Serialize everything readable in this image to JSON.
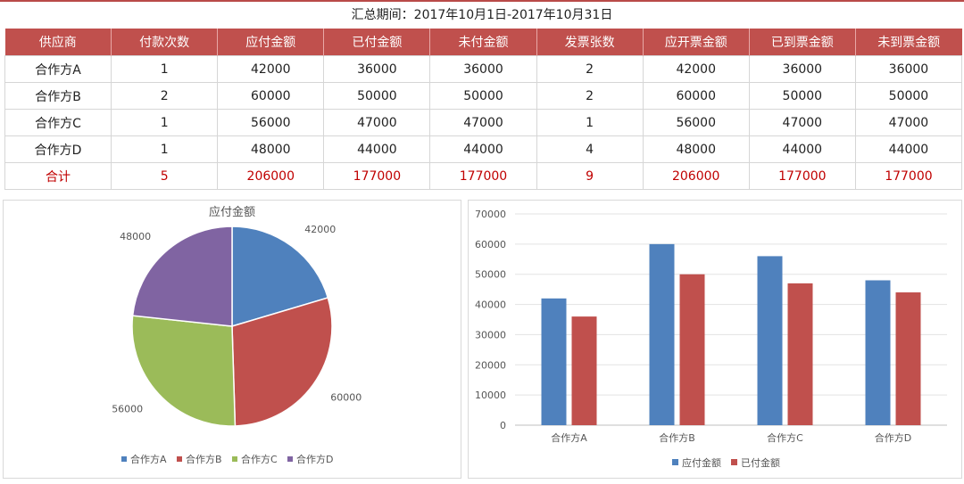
{
  "period_label": "汇总期间：2017年10月1日-2017年10月31日",
  "table": {
    "headers": [
      "供应商",
      "付款次数",
      "应付金额",
      "已付金额",
      "未付金额",
      "发票张数",
      "应开票金额",
      "已到票金额",
      "未到票金额"
    ],
    "rows": [
      [
        "合作方A",
        "1",
        "42000",
        "36000",
        "36000",
        "2",
        "42000",
        "36000",
        "36000"
      ],
      [
        "合作方B",
        "2",
        "60000",
        "50000",
        "50000",
        "2",
        "60000",
        "50000",
        "50000"
      ],
      [
        "合作方C",
        "1",
        "56000",
        "47000",
        "47000",
        "1",
        "56000",
        "47000",
        "47000"
      ],
      [
        "合作方D",
        "1",
        "48000",
        "44000",
        "44000",
        "4",
        "48000",
        "44000",
        "44000"
      ]
    ],
    "total": [
      "合计",
      "5",
      "206000",
      "177000",
      "177000",
      "9",
      "206000",
      "177000",
      "177000"
    ]
  },
  "chart_data": [
    {
      "type": "pie",
      "title": "应付金额",
      "categories": [
        "合作方A",
        "合作方B",
        "合作方C",
        "合作方D"
      ],
      "values": [
        42000,
        60000,
        56000,
        48000
      ],
      "data_labels": [
        "42000",
        "60000",
        "56000",
        "48000"
      ],
      "colors": [
        "#4f81bd",
        "#c0504d",
        "#9bbb59",
        "#8064a2"
      ],
      "legend": "bottom"
    },
    {
      "type": "bar",
      "title": "",
      "categories": [
        "合作方A",
        "合作方B",
        "合作方C",
        "合作方D"
      ],
      "series": [
        {
          "name": "应付金额",
          "values": [
            42000,
            60000,
            56000,
            48000
          ],
          "color": "#4f81bd"
        },
        {
          "name": "已付金额",
          "values": [
            36000,
            50000,
            47000,
            44000
          ],
          "color": "#c0504d"
        }
      ],
      "ylim": [
        0,
        70000
      ],
      "yticks": [
        "0",
        "10000",
        "20000",
        "30000",
        "40000",
        "50000",
        "60000",
        "70000"
      ],
      "grid": true,
      "legend": "bottom"
    }
  ]
}
